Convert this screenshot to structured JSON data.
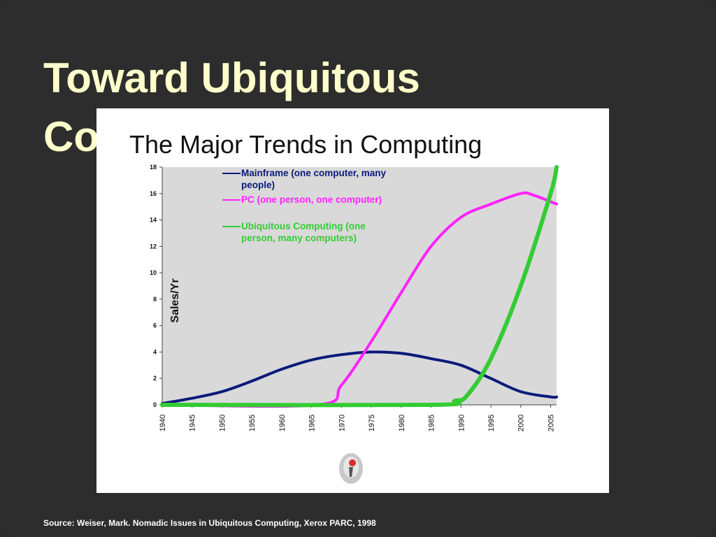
{
  "slide": {
    "title": "Toward Ubiquitous Computing",
    "source": "Source: Weiser, Mark.  Nomadic Issues in Ubiquitous Computing, Xerox PARC, 1998"
  },
  "colors": {
    "background": "#2d2d2d",
    "title": "#ffffcc",
    "plot_area": "#d9d9d9",
    "mainframe": "#0b1a7a",
    "pc": "#ff22ff",
    "ubiquitous": "#33cc33"
  },
  "chart_data": {
    "type": "line",
    "title": "The Major Trends in Computing",
    "xlabel": "",
    "ylabel": "Sales/Yr",
    "xlim": [
      1940,
      2006
    ],
    "ylim": [
      0,
      18
    ],
    "x_ticks": [
      "1940",
      "1945",
      "1950",
      "1955",
      "1960",
      "1965",
      "1970",
      "1975",
      "1980",
      "1985",
      "1990",
      "1995",
      "2000",
      "2005"
    ],
    "y_ticks": [
      "0",
      "2",
      "4",
      "6",
      "8",
      "10",
      "12",
      "14",
      "16",
      "18"
    ],
    "grid": false,
    "legend_position": "top-left-inside",
    "series": [
      {
        "name": "Mainframe (one computer, many people)",
        "color": "#0b1a7a",
        "x": [
          1940,
          1945,
          1950,
          1955,
          1960,
          1965,
          1970,
          1975,
          1980,
          1985,
          1990,
          1995,
          2000,
          2005,
          2006
        ],
        "y": [
          0.1,
          0.5,
          1.0,
          1.8,
          2.7,
          3.4,
          3.8,
          4.0,
          3.9,
          3.5,
          3.0,
          2.0,
          1.0,
          0.6,
          0.6
        ]
      },
      {
        "name": "PC (one person, one computer)",
        "color": "#ff22ff",
        "x": [
          1940,
          1966,
          1970,
          1975,
          1980,
          1985,
          1990,
          1995,
          2000,
          2002,
          2006
        ],
        "y": [
          0.0,
          0.0,
          1.5,
          4.8,
          8.5,
          12.0,
          14.2,
          15.2,
          16.0,
          15.9,
          15.2
        ]
      },
      {
        "name": "Ubiquitous Computing (one person, many computers)",
        "color": "#33cc33",
        "x": [
          1940,
          1985,
          1989,
          1991,
          1995,
          2000,
          2005,
          2006
        ],
        "y": [
          0.0,
          0.0,
          0.3,
          0.7,
          3.5,
          9.0,
          16.0,
          18.0
        ]
      }
    ]
  }
}
